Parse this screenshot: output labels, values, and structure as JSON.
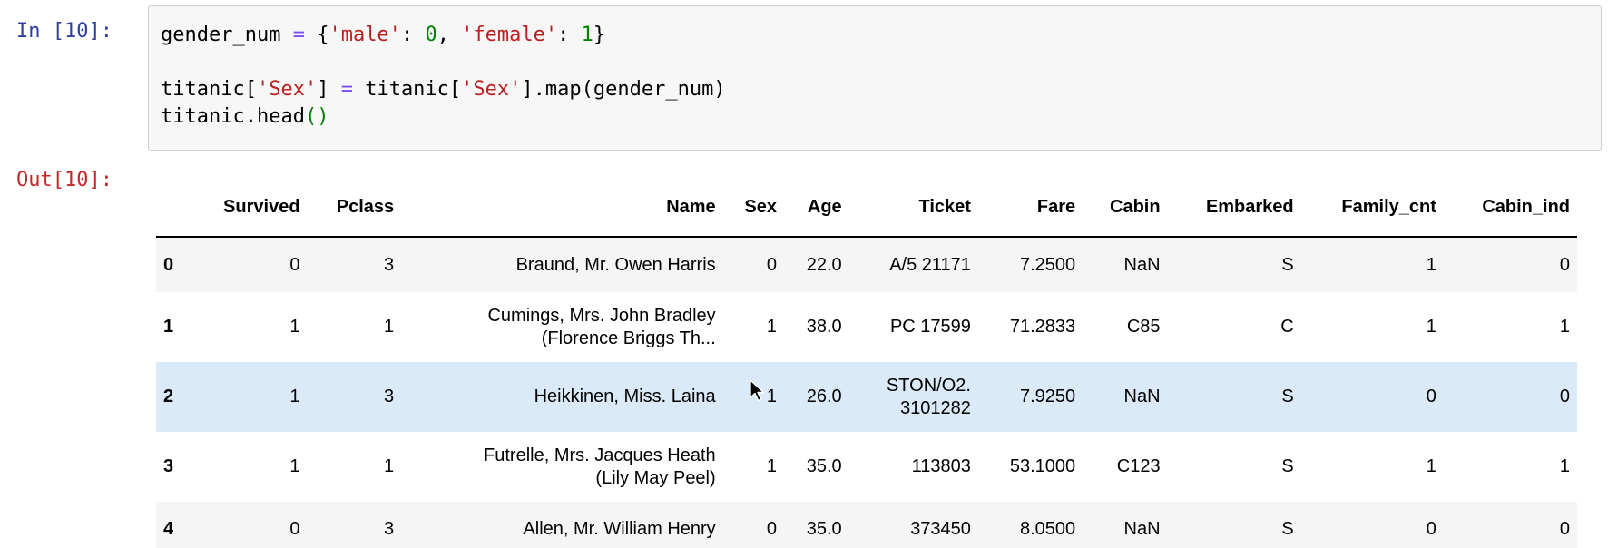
{
  "input_prompt": "In [10]:",
  "output_prompt": "Out[10]:",
  "code": {
    "line1": {
      "var": "gender_num",
      "eq": "=",
      "brace_open": "{",
      "key1": "'male'",
      "colon1": ":",
      "val1": "0",
      "comma": ",",
      "key2": "'female'",
      "colon2": ":",
      "val2": "1",
      "brace_close": "}"
    },
    "line3": {
      "target": "titanic[",
      "key": "'Sex'",
      "close": "]",
      "eq": "=",
      "src": "titanic[",
      "src_key": "'Sex'",
      "call": "].map(gender_num)"
    },
    "line4": {
      "text": "titanic.head",
      "parens": "()"
    }
  },
  "table": {
    "columns": [
      "",
      "Survived",
      "Pclass",
      "Name",
      "Sex",
      "Age",
      "Ticket",
      "Fare",
      "Cabin",
      "Embarked",
      "Family_cnt",
      "Cabin_ind"
    ],
    "rows": [
      {
        "index": "0",
        "survived": "0",
        "pclass": "3",
        "name1": "Braund, Mr. Owen Harris",
        "name2": "",
        "sex": "0",
        "age": "22.0",
        "ticket1": "A/5 21171",
        "ticket2": "",
        "fare": "7.2500",
        "cabin": "NaN",
        "embarked": "S",
        "family_cnt": "1",
        "cabin_ind": "0"
      },
      {
        "index": "1",
        "survived": "1",
        "pclass": "1",
        "name1": "Cumings, Mrs. John Bradley",
        "name2": "(Florence Briggs Th...",
        "sex": "1",
        "age": "38.0",
        "ticket1": "PC 17599",
        "ticket2": "",
        "fare": "71.2833",
        "cabin": "C85",
        "embarked": "C",
        "family_cnt": "1",
        "cabin_ind": "1"
      },
      {
        "index": "2",
        "survived": "1",
        "pclass": "3",
        "name1": "Heikkinen, Miss. Laina",
        "name2": "",
        "sex": "1",
        "age": "26.0",
        "ticket1": "STON/O2.",
        "ticket2": "3101282",
        "fare": "7.9250",
        "cabin": "NaN",
        "embarked": "S",
        "family_cnt": "0",
        "cabin_ind": "0"
      },
      {
        "index": "3",
        "survived": "1",
        "pclass": "1",
        "name1": "Futrelle, Mrs. Jacques Heath",
        "name2": "(Lily May Peel)",
        "sex": "1",
        "age": "35.0",
        "ticket1": "113803",
        "ticket2": "",
        "fare": "53.1000",
        "cabin": "C123",
        "embarked": "S",
        "family_cnt": "1",
        "cabin_ind": "1"
      },
      {
        "index": "4",
        "survived": "0",
        "pclass": "3",
        "name1": "Allen, Mr. William Henry",
        "name2": "",
        "sex": "0",
        "age": "35.0",
        "ticket1": "373450",
        "ticket2": "",
        "fare": "8.0500",
        "cabin": "NaN",
        "embarked": "S",
        "family_cnt": "0",
        "cabin_ind": "0"
      }
    ]
  },
  "icons": {
    "cursor": "mouse-pointer-icon"
  },
  "colors": {
    "input_prompt": "#303f9f",
    "output_prompt": "#c62828",
    "string": "#ba2121",
    "number": "#008000",
    "operator": "#7c4dff",
    "highlight_row": "#daeaf8"
  }
}
